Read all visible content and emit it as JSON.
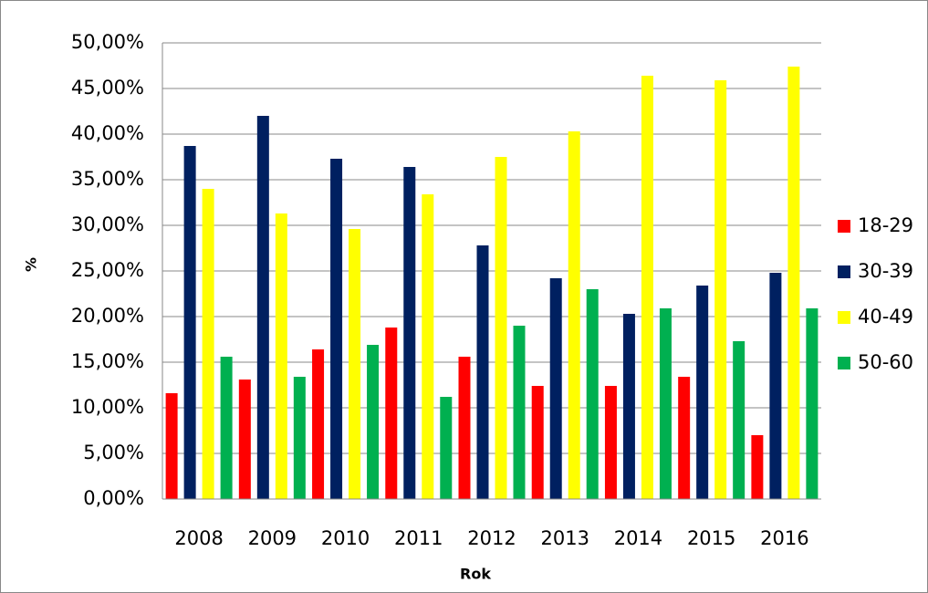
{
  "chart_data": {
    "type": "bar",
    "x_label": "Rok",
    "y_label": "%",
    "categories": [
      "2008",
      "2009",
      "2010",
      "2011",
      "2012",
      "2013",
      "2014",
      "2015",
      "2016"
    ],
    "series": [
      {
        "name": "18-29",
        "color": "#ff0000",
        "values": [
          11.6,
          13.1,
          16.4,
          18.8,
          15.6,
          12.4,
          12.4,
          13.4,
          7.0
        ]
      },
      {
        "name": "30-39",
        "color": "#002060",
        "values": [
          38.7,
          42.0,
          37.3,
          36.4,
          27.8,
          24.2,
          20.3,
          23.4,
          24.8
        ]
      },
      {
        "name": "40-49",
        "color": "#ffff00",
        "values": [
          34.0,
          31.3,
          29.6,
          33.4,
          37.5,
          40.3,
          46.4,
          45.9,
          47.4
        ]
      },
      {
        "name": "50-60",
        "color": "#00b050",
        "values": [
          15.6,
          13.4,
          16.9,
          11.2,
          19.0,
          23.0,
          20.9,
          17.3,
          20.9
        ]
      }
    ],
    "ylim": [
      0,
      50
    ],
    "yticks": [
      {
        "value": 0,
        "label": "0,00%"
      },
      {
        "value": 5,
        "label": "5,00%"
      },
      {
        "value": 10,
        "label": "10,00%"
      },
      {
        "value": 15,
        "label": "15,00%"
      },
      {
        "value": 20,
        "label": "20,00%"
      },
      {
        "value": 25,
        "label": "25,00%"
      },
      {
        "value": 30,
        "label": "30,00%"
      },
      {
        "value": 35,
        "label": "35,00%"
      },
      {
        "value": 40,
        "label": "40,00%"
      },
      {
        "value": 45,
        "label": "45,00%"
      },
      {
        "value": 50,
        "label": "50,00%"
      }
    ],
    "grid": true,
    "legend": "right"
  }
}
